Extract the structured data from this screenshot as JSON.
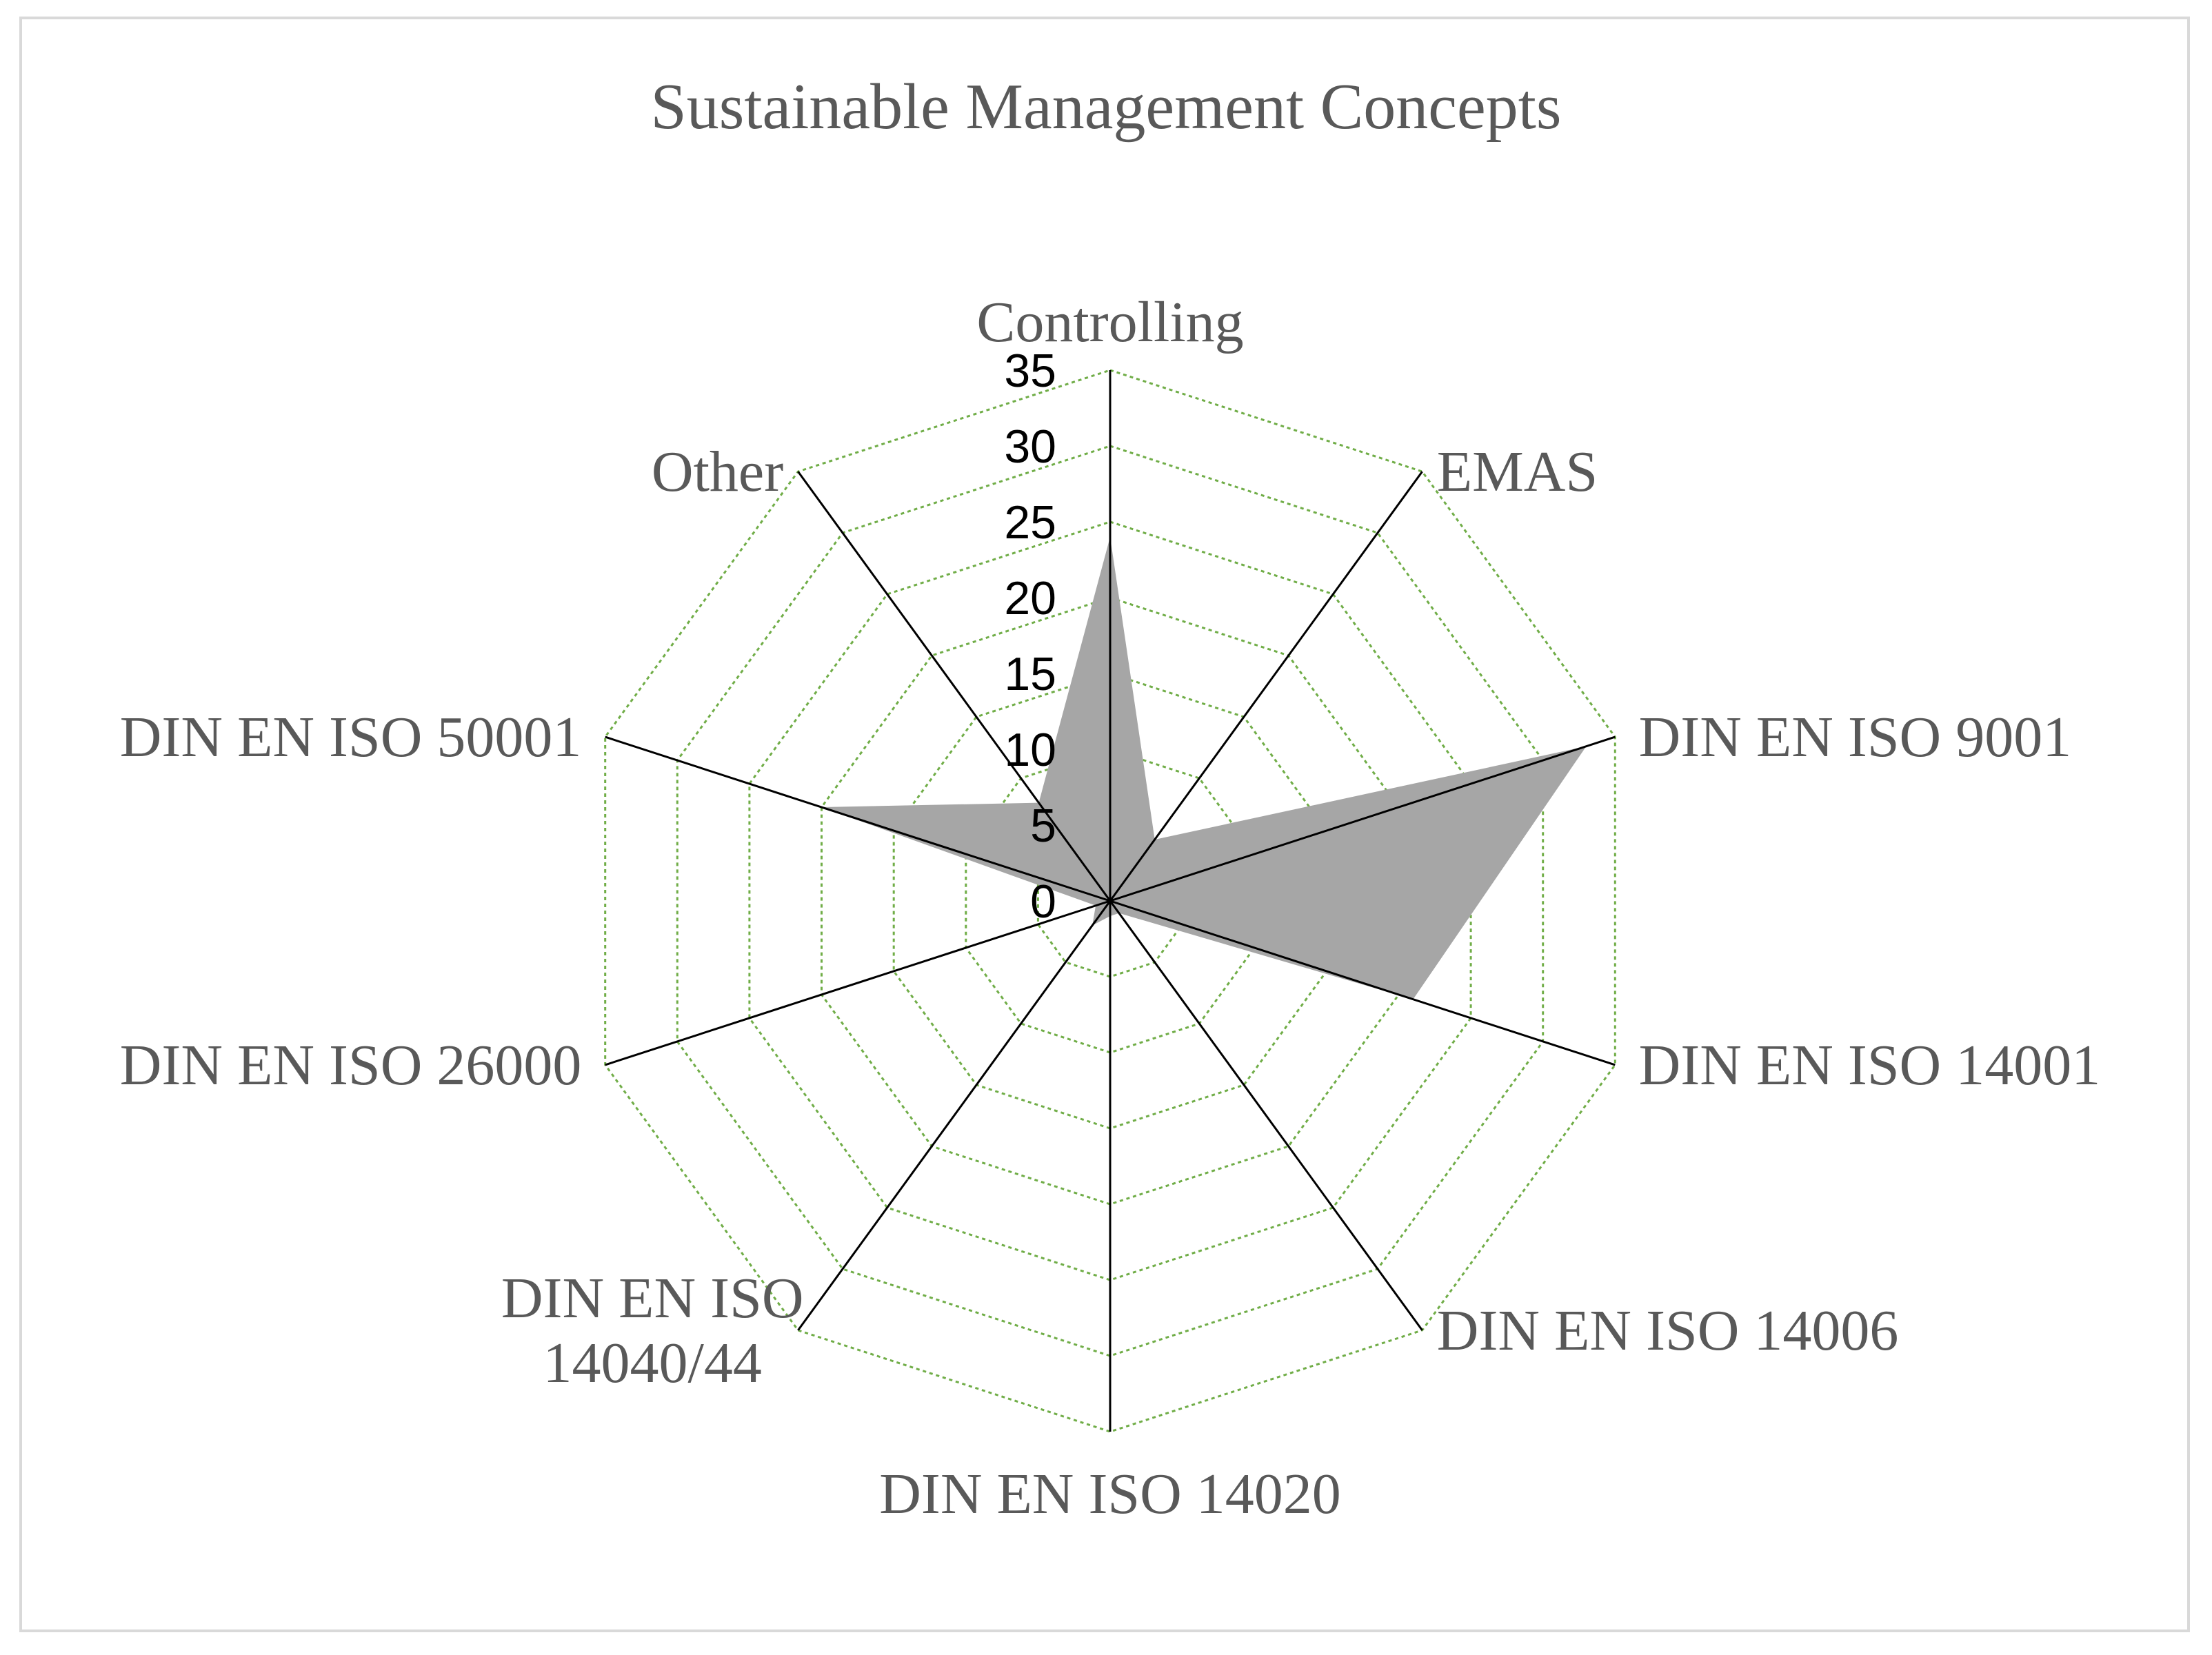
{
  "chart_data": {
    "type": "radar",
    "title": "Sustainable Management Concepts",
    "categories": [
      "Controlling",
      "EMAS",
      "DIN EN ISO 9001",
      "DIN EN ISO 14001",
      "DIN EN ISO 14006",
      "DIN EN ISO 14020",
      "DIN EN ISO 14040/44",
      "DIN EN ISO 26000",
      "DIN EN ISO 50001",
      "Other"
    ],
    "series": [
      {
        "values": [
          24,
          5,
          33,
          21,
          1,
          1,
          2,
          1,
          20,
          8
        ]
      }
    ],
    "rlim": [
      0,
      35
    ],
    "ticks": [
      0,
      5,
      10,
      15,
      20,
      25,
      30,
      35
    ],
    "tick_labels": [
      "0",
      "5",
      "10",
      "15",
      "20",
      "25",
      "30",
      "35"
    ],
    "grid": true,
    "colors": {
      "fill": "#a6a6a6",
      "grid": "#70ad47",
      "axis": "#000000",
      "frame": "#d9d9d9",
      "text": "#595959"
    }
  }
}
